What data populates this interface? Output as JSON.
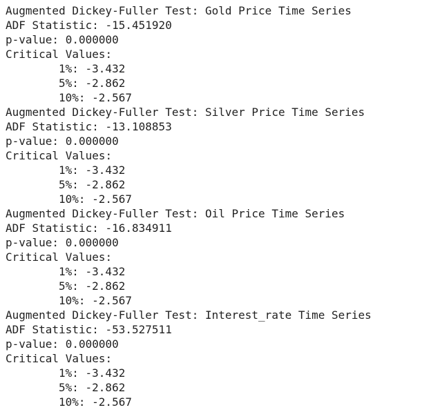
{
  "blocks": [
    {
      "heading": "Augmented Dickey-Fuller Test: Gold Price Time Series",
      "lines": [
        "ADF Statistic: -15.451920",
        "p-value: 0.000000",
        "Critical Values:"
      ],
      "critical": [
        "1%: -3.432",
        "5%: -2.862",
        "10%: -2.567"
      ]
    },
    {
      "heading": "Augmented Dickey-Fuller Test: Silver Price Time Series",
      "lines": [
        "ADF Statistic: -13.108853",
        "p-value: 0.000000",
        "Critical Values:"
      ],
      "critical": [
        "1%: -3.432",
        "5%: -2.862",
        "10%: -2.567"
      ]
    },
    {
      "heading": "Augmented Dickey-Fuller Test: Oil Price Time Series",
      "lines": [
        "ADF Statistic: -16.834911",
        "p-value: 0.000000",
        "Critical Values:"
      ],
      "critical": [
        "1%: -3.432",
        "5%: -2.862",
        "10%: -2.567"
      ]
    },
    {
      "heading": "Augmented Dickey-Fuller Test: Interest_rate Time Series",
      "lines": [
        "ADF Statistic: -53.527511",
        "p-value: 0.000000",
        "Critical Values:"
      ],
      "critical": [
        "1%: -3.432",
        "5%: -2.862",
        "10%: -2.567"
      ]
    }
  ]
}
